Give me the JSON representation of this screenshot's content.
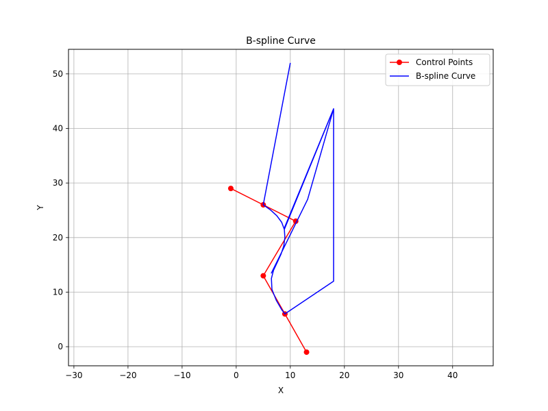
{
  "chart_data": {
    "type": "line",
    "title": "B-spline Curve",
    "xlabel": "X",
    "ylabel": "Y",
    "xlim": [
      -31,
      47.5
    ],
    "ylim": [
      -3.5,
      54.5
    ],
    "xticks": [
      -30,
      -20,
      -10,
      0,
      10,
      20,
      30,
      40
    ],
    "yticks": [
      0,
      10,
      20,
      30,
      40,
      50
    ],
    "grid": true,
    "legend": "top-right",
    "series": [
      {
        "name": "Control Points",
        "color": "#ff0000",
        "marker": "circle",
        "x": [
          -1,
          5,
          11,
          5,
          9,
          13
        ],
        "y": [
          29,
          26,
          23,
          13,
          6,
          -1
        ]
      },
      {
        "name": "B-spline Curve",
        "color": "#0000ff",
        "x": [
          10,
          5,
          6.3,
          7.5,
          8.4,
          8.9,
          9.0,
          8.8,
          8.3,
          7.6,
          6.9,
          6.5,
          6.6,
          7.4,
          8.4,
          9.0,
          18,
          18,
          13.2,
          6.5,
          13.2,
          18,
          9.0,
          8.9,
          18
        ],
        "y": [
          52,
          26,
          25.1,
          24.0,
          22.8,
          21.5,
          20.0,
          18.5,
          17.0,
          15.5,
          14.0,
          12.5,
          10.5,
          8.5,
          6.8,
          6.0,
          12,
          43.6,
          27,
          13.5,
          27,
          43.6,
          22,
          21.5,
          43.6
        ]
      }
    ]
  }
}
